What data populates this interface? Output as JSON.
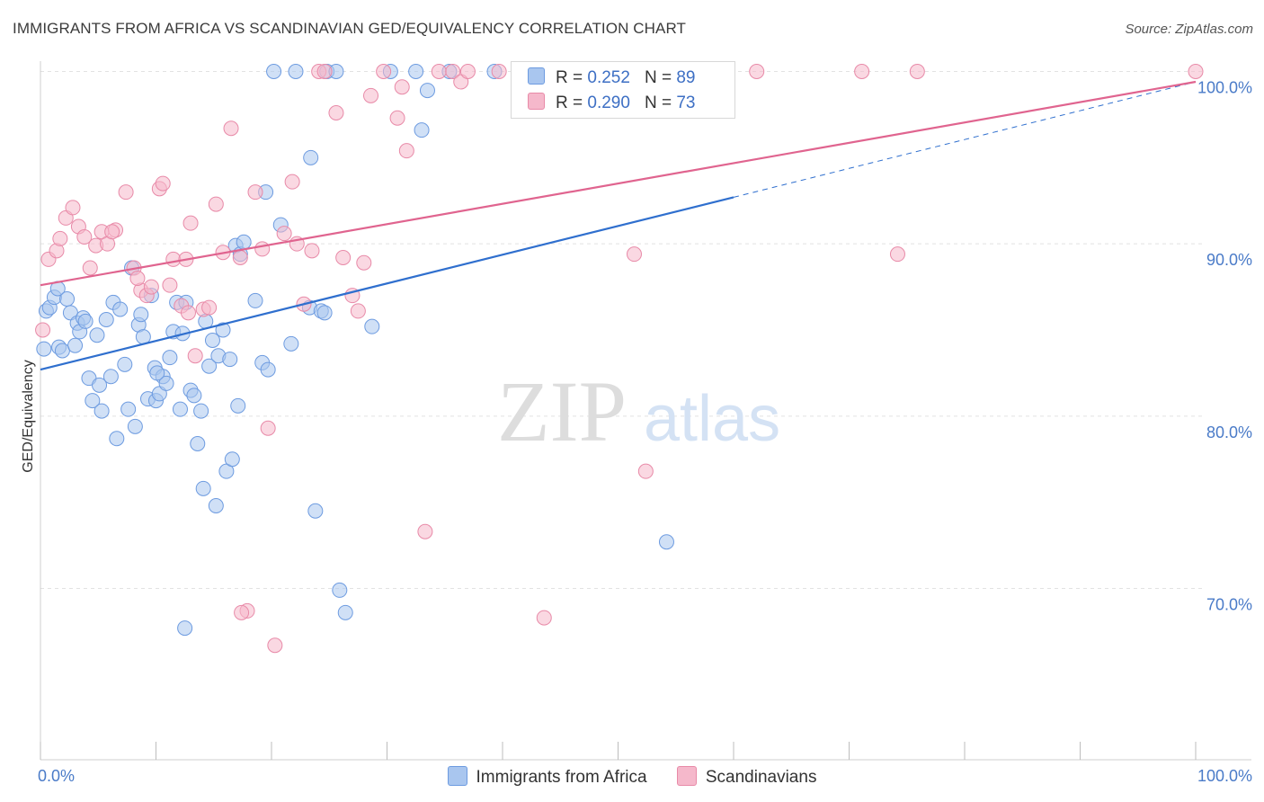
{
  "title": "IMMIGRANTS FROM AFRICA VS SCANDINAVIAN GED/EQUIVALENCY CORRELATION CHART",
  "source": "Source: ZipAtlas.com",
  "watermark": {
    "zip": "ZIP",
    "atlas": "atlas"
  },
  "legend": {
    "rows": [
      {
        "r_label": "R =",
        "r_value": "0.252",
        "n_label": "N =",
        "n_value": "89"
      },
      {
        "r_label": "R =",
        "r_value": "0.290",
        "n_label": "N =",
        "n_value": "73"
      }
    ]
  },
  "colors": {
    "blue_fill": "#a9c6ef",
    "blue_stroke": "#6d9be0",
    "blue_line": "#2f6fce",
    "pink_fill": "#f5b8cb",
    "pink_stroke": "#e88aa8",
    "pink_line": "#e0648f",
    "grid": "#e2e2e2",
    "axis_label": "#4a7bc8"
  },
  "chart_data": {
    "type": "scatter",
    "title": "IMMIGRANTS FROM AFRICA VS SCANDINAVIAN GED/EQUIVALENCY CORRELATION CHART",
    "xlabel": "",
    "ylabel": "GED/Equivalency",
    "xlim": [
      0,
      100
    ],
    "ylim": [
      60.5,
      101.5
    ],
    "x_tick_labels": [
      "0.0%",
      "100.0%"
    ],
    "y_ticks": [
      70,
      80,
      90,
      100
    ],
    "y_tick_labels": [
      "70.0%",
      "80.0%",
      "90.0%",
      "100.0%"
    ],
    "grid": true,
    "legend_position": "top-center",
    "series": [
      {
        "name": "Immigrants from Africa",
        "color": "#a9c6ef",
        "trend": {
          "x": [
            0,
            60
          ],
          "y": [
            82.7,
            92.7
          ],
          "dashed_to": [
            100,
            99.4
          ]
        },
        "points": [
          [
            0.3,
            83.9
          ],
          [
            0.5,
            86.1
          ],
          [
            0.8,
            86.3
          ],
          [
            1.2,
            86.9
          ],
          [
            1.5,
            87.4
          ],
          [
            1.6,
            84.0
          ],
          [
            1.9,
            83.8
          ],
          [
            2.3,
            86.8
          ],
          [
            2.6,
            86.0
          ],
          [
            3.0,
            84.1
          ],
          [
            3.2,
            85.4
          ],
          [
            3.4,
            84.9
          ],
          [
            3.7,
            85.7
          ],
          [
            3.9,
            85.5
          ],
          [
            4.2,
            82.2
          ],
          [
            4.5,
            80.9
          ],
          [
            4.9,
            84.7
          ],
          [
            5.1,
            81.8
          ],
          [
            5.3,
            80.3
          ],
          [
            5.7,
            85.6
          ],
          [
            6.1,
            82.3
          ],
          [
            6.3,
            86.6
          ],
          [
            6.6,
            78.7
          ],
          [
            6.9,
            86.2
          ],
          [
            7.3,
            83.0
          ],
          [
            7.6,
            80.4
          ],
          [
            7.9,
            88.6
          ],
          [
            8.2,
            79.4
          ],
          [
            8.5,
            85.3
          ],
          [
            8.7,
            85.9
          ],
          [
            8.9,
            84.6
          ],
          [
            9.3,
            81.0
          ],
          [
            9.6,
            87.0
          ],
          [
            9.9,
            82.8
          ],
          [
            10.0,
            80.9
          ],
          [
            10.3,
            81.3
          ],
          [
            10.6,
            82.3
          ],
          [
            10.9,
            81.9
          ],
          [
            11.2,
            83.4
          ],
          [
            11.5,
            84.9
          ],
          [
            11.8,
            86.6
          ],
          [
            12.1,
            80.4
          ],
          [
            12.3,
            84.8
          ],
          [
            12.6,
            86.6
          ],
          [
            13.0,
            81.5
          ],
          [
            13.3,
            81.2
          ],
          [
            13.6,
            78.4
          ],
          [
            13.9,
            80.3
          ],
          [
            14.1,
            75.8
          ],
          [
            14.3,
            85.5
          ],
          [
            14.6,
            82.9
          ],
          [
            14.9,
            84.4
          ],
          [
            15.2,
            74.8
          ],
          [
            15.4,
            83.5
          ],
          [
            15.8,
            85.0
          ],
          [
            16.1,
            76.8
          ],
          [
            16.4,
            83.3
          ],
          [
            16.6,
            77.5
          ],
          [
            16.9,
            89.9
          ],
          [
            17.1,
            80.6
          ],
          [
            17.3,
            89.4
          ],
          [
            17.6,
            90.1
          ],
          [
            18.6,
            86.7
          ],
          [
            19.2,
            83.1
          ],
          [
            19.5,
            93.0
          ],
          [
            19.7,
            82.7
          ],
          [
            20.2,
            100.0
          ],
          [
            20.8,
            91.1
          ],
          [
            21.7,
            84.2
          ],
          [
            22.1,
            100.0
          ],
          [
            23.3,
            86.3
          ],
          [
            23.4,
            95.0
          ],
          [
            23.8,
            74.5
          ],
          [
            24.3,
            86.1
          ],
          [
            24.6,
            86.0
          ],
          [
            24.8,
            100.0
          ],
          [
            25.6,
            100.0
          ],
          [
            25.9,
            69.9
          ],
          [
            26.4,
            68.6
          ],
          [
            28.7,
            85.2
          ],
          [
            30.3,
            100.0
          ],
          [
            32.5,
            100.0
          ],
          [
            33.0,
            96.6
          ],
          [
            33.5,
            98.9
          ],
          [
            35.4,
            100.0
          ],
          [
            39.3,
            100.0
          ],
          [
            54.2,
            72.7
          ],
          [
            12.5,
            67.7
          ],
          [
            10.1,
            82.5
          ]
        ]
      },
      {
        "name": "Scandinavians",
        "color": "#f5b8cb",
        "trend": {
          "x": [
            0,
            100
          ],
          "y": [
            87.6,
            99.4
          ]
        },
        "points": [
          [
            0.2,
            85.0
          ],
          [
            0.7,
            89.1
          ],
          [
            1.4,
            89.6
          ],
          [
            1.7,
            90.3
          ],
          [
            2.2,
            91.5
          ],
          [
            2.8,
            92.1
          ],
          [
            3.3,
            91.0
          ],
          [
            3.8,
            90.4
          ],
          [
            4.3,
            88.6
          ],
          [
            4.8,
            89.9
          ],
          [
            5.3,
            90.7
          ],
          [
            5.8,
            90.0
          ],
          [
            6.5,
            90.8
          ],
          [
            7.4,
            93.0
          ],
          [
            8.1,
            88.6
          ],
          [
            8.7,
            87.3
          ],
          [
            9.2,
            87.0
          ],
          [
            9.6,
            87.5
          ],
          [
            10.3,
            93.2
          ],
          [
            10.6,
            93.5
          ],
          [
            11.2,
            87.6
          ],
          [
            11.5,
            89.1
          ],
          [
            12.2,
            86.4
          ],
          [
            12.6,
            89.1
          ],
          [
            13.0,
            91.2
          ],
          [
            13.4,
            83.5
          ],
          [
            14.1,
            86.2
          ],
          [
            14.6,
            86.3
          ],
          [
            15.2,
            92.3
          ],
          [
            15.8,
            89.5
          ],
          [
            16.5,
            96.7
          ],
          [
            17.3,
            89.2
          ],
          [
            17.9,
            68.7
          ],
          [
            18.6,
            93.0
          ],
          [
            19.2,
            89.7
          ],
          [
            19.7,
            79.3
          ],
          [
            20.3,
            66.7
          ],
          [
            21.1,
            90.6
          ],
          [
            21.8,
            93.6
          ],
          [
            22.2,
            90.0
          ],
          [
            22.8,
            86.5
          ],
          [
            23.5,
            89.6
          ],
          [
            24.1,
            100.0
          ],
          [
            24.6,
            100.0
          ],
          [
            25.6,
            97.6
          ],
          [
            26.2,
            89.2
          ],
          [
            27.0,
            87.0
          ],
          [
            27.5,
            86.1
          ],
          [
            28.0,
            88.9
          ],
          [
            28.6,
            98.6
          ],
          [
            29.7,
            100.0
          ],
          [
            30.9,
            97.3
          ],
          [
            31.3,
            99.1
          ],
          [
            31.7,
            95.4
          ],
          [
            33.3,
            73.3
          ],
          [
            34.5,
            100.0
          ],
          [
            35.7,
            100.0
          ],
          [
            36.4,
            99.4
          ],
          [
            37.0,
            100.0
          ],
          [
            39.7,
            100.0
          ],
          [
            43.3,
            100.0
          ],
          [
            43.6,
            68.3
          ],
          [
            51.4,
            89.4
          ],
          [
            52.4,
            76.8
          ],
          [
            62.0,
            100.0
          ],
          [
            71.1,
            100.0
          ],
          [
            74.2,
            89.4
          ],
          [
            75.9,
            100.0
          ],
          [
            100.0,
            100.0
          ],
          [
            17.4,
            68.6
          ],
          [
            6.2,
            90.7
          ],
          [
            8.4,
            88.0
          ],
          [
            12.8,
            86.0
          ]
        ]
      }
    ]
  },
  "bottom_legend": [
    "Immigrants from Africa",
    "Scandinavians"
  ]
}
